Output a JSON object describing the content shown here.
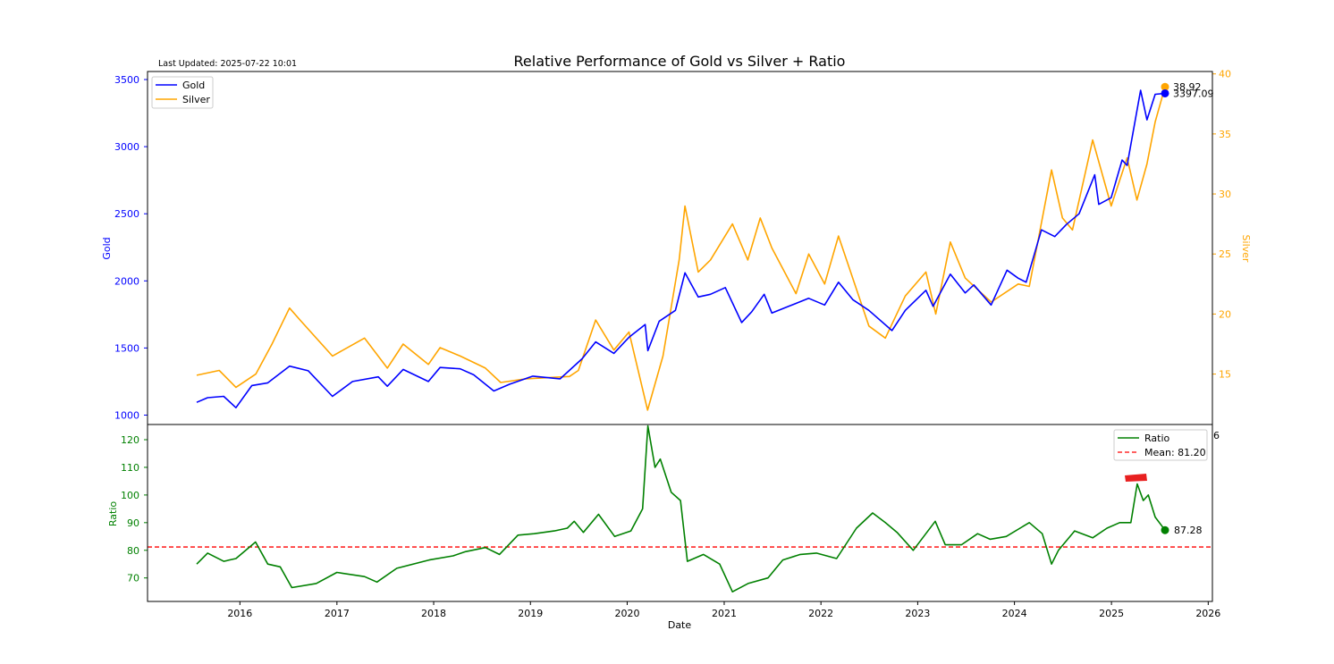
{
  "title": "Relative Performance of Gold vs Silver + Ratio",
  "last_updated": "Last Updated: 2025-07-22 10:01",
  "colors": {
    "gold": "#0000ff",
    "silver": "#ffa500",
    "ratio": "#008000",
    "mean": "#ff0000",
    "marker": "#e82020"
  },
  "chart_data": [
    {
      "type": "line",
      "xlabel": "",
      "ylabel": "Gold",
      "ylabel_right": "Silver",
      "x_range": [
        "2015-07-22",
        "2025-07-22"
      ],
      "ylim": [
        930,
        3560
      ],
      "ylim_right": [
        10.8,
        40.2
      ],
      "yticks": [
        1000,
        1500,
        2000,
        2500,
        3000,
        3500
      ],
      "yticks_right": [
        15,
        20,
        25,
        30,
        35,
        40
      ],
      "legend": "top-left",
      "series": [
        {
          "name": "Gold",
          "axis": "left",
          "x": [
            "2015-07-22",
            "2015-09-01",
            "2015-11-01",
            "2015-12-17",
            "2016-02-15",
            "2016-04-15",
            "2016-07-06",
            "2016-09-15",
            "2016-12-15",
            "2017-03-01",
            "2017-06-06",
            "2017-07-10",
            "2017-09-08",
            "2017-12-12",
            "2018-01-25",
            "2018-04-11",
            "2018-06-01",
            "2018-08-16",
            "2018-10-15",
            "2019-01-10",
            "2019-04-23",
            "2019-06-01",
            "2019-07-15",
            "2019-09-04",
            "2019-11-12",
            "2020-01-08",
            "2020-03-09",
            "2020-03-19",
            "2020-05-01",
            "2020-07-01",
            "2020-08-06",
            "2020-09-25",
            "2020-11-10",
            "2021-01-05",
            "2021-03-08",
            "2021-04-15",
            "2021-06-01",
            "2021-06-30",
            "2021-09-01",
            "2021-11-16",
            "2022-01-15",
            "2022-03-08",
            "2022-05-01",
            "2022-07-01",
            "2022-09-26",
            "2022-11-15",
            "2023-02-01",
            "2023-02-28",
            "2023-05-04",
            "2023-06-29",
            "2023-08-01",
            "2023-10-05",
            "2023-12-04",
            "2024-01-15",
            "2024-02-14",
            "2024-04-12",
            "2024-06-01",
            "2024-07-15",
            "2024-09-01",
            "2024-10-30",
            "2024-11-14",
            "2024-12-31",
            "2025-02-10",
            "2025-03-01",
            "2025-04-21",
            "2025-05-15",
            "2025-06-15",
            "2025-07-22"
          ],
          "values": [
            1095,
            1130,
            1140,
            1055,
            1220,
            1240,
            1365,
            1330,
            1140,
            1250,
            1285,
            1215,
            1340,
            1250,
            1355,
            1345,
            1300,
            1180,
            1230,
            1290,
            1270,
            1340,
            1420,
            1545,
            1460,
            1580,
            1675,
            1480,
            1700,
            1780,
            2060,
            1880,
            1900,
            1950,
            1690,
            1770,
            1900,
            1760,
            1810,
            1870,
            1820,
            1990,
            1860,
            1780,
            1630,
            1780,
            1930,
            1810,
            2050,
            1910,
            1970,
            1820,
            2080,
            2020,
            1990,
            2380,
            2330,
            2420,
            2500,
            2790,
            2570,
            2620,
            2900,
            2860,
            3420,
            3200,
            3390,
            3397.09
          ]
        },
        {
          "name": "Silver",
          "axis": "right",
          "x": [
            "2015-07-22",
            "2015-10-15",
            "2015-12-17",
            "2016-03-01",
            "2016-05-01",
            "2016-07-06",
            "2016-08-15",
            "2016-12-15",
            "2017-04-15",
            "2017-07-10",
            "2017-09-08",
            "2017-12-12",
            "2018-01-25",
            "2018-04-11",
            "2018-07-15",
            "2018-09-11",
            "2018-12-14",
            "2019-05-28",
            "2019-07-01",
            "2019-09-04",
            "2019-11-12",
            "2020-01-08",
            "2020-03-18",
            "2020-05-15",
            "2020-07-15",
            "2020-08-06",
            "2020-09-25",
            "2020-11-10",
            "2021-02-01",
            "2021-03-31",
            "2021-05-17",
            "2021-06-30",
            "2021-09-29",
            "2021-11-16",
            "2022-01-15",
            "2022-03-08",
            "2022-07-01",
            "2022-09-01",
            "2022-11-15",
            "2023-02-01",
            "2023-03-10",
            "2023-05-04",
            "2023-06-29",
            "2023-10-05",
            "2024-01-15",
            "2024-02-26",
            "2024-05-20",
            "2024-06-30",
            "2024-08-07",
            "2024-10-22",
            "2024-12-31",
            "2025-03-01",
            "2025-04-07",
            "2025-05-15",
            "2025-06-15",
            "2025-07-22"
          ],
          "values": [
            14.9,
            15.3,
            13.9,
            15.0,
            17.5,
            20.5,
            19.5,
            16.5,
            18.0,
            15.5,
            17.5,
            15.8,
            17.2,
            16.5,
            15.5,
            14.3,
            14.6,
            14.8,
            15.3,
            19.5,
            17.0,
            18.5,
            12.0,
            16.5,
            24.5,
            29.0,
            23.5,
            24.5,
            27.5,
            24.5,
            28.0,
            25.5,
            21.7,
            25.0,
            22.5,
            26.5,
            19.0,
            18.0,
            21.5,
            23.5,
            20.0,
            26.0,
            23.0,
            21.0,
            22.5,
            22.3,
            32.0,
            28.0,
            27.0,
            34.5,
            29.0,
            33.0,
            29.5,
            32.5,
            36.0,
            38.92
          ]
        }
      ],
      "annotations": [
        {
          "series": "Silver",
          "x": "2025-07-22",
          "y": 38.92,
          "text": "38.92"
        },
        {
          "series": "Gold",
          "x": "2025-07-22",
          "y": 3397.09,
          "text": "3397.09"
        }
      ]
    },
    {
      "type": "line",
      "xlabel": "Date",
      "ylabel": "Ratio",
      "x_range": [
        "2015-07-22",
        "2025-07-22"
      ],
      "ylim": [
        61.5,
        125.5
      ],
      "yticks": [
        70,
        80,
        90,
        100,
        110,
        120
      ],
      "xticks": [
        "2016",
        "2017",
        "2018",
        "2019",
        "2020",
        "2021",
        "2022",
        "2023",
        "2024",
        "2025",
        "2026"
      ],
      "legend": "top-right",
      "mean": 81.2,
      "series": [
        {
          "name": "Ratio",
          "x": [
            "2015-07-22",
            "2015-09-01",
            "2015-11-01",
            "2015-12-17",
            "2016-02-29",
            "2016-04-15",
            "2016-06-01",
            "2016-07-15",
            "2016-10-15",
            "2017-01-01",
            "2017-04-15",
            "2017-06-01",
            "2017-08-15",
            "2017-12-15",
            "2018-03-15",
            "2018-05-01",
            "2018-07-15",
            "2018-09-06",
            "2018-11-15",
            "2019-01-15",
            "2019-04-01",
            "2019-05-20",
            "2019-06-15",
            "2019-07-20",
            "2019-09-15",
            "2019-11-15",
            "2020-01-15",
            "2020-02-28",
            "2020-03-19",
            "2020-04-15",
            "2020-05-05",
            "2020-06-15",
            "2020-07-20",
            "2020-08-15",
            "2020-10-15",
            "2020-12-15",
            "2021-02-01",
            "2021-04-01",
            "2021-06-15",
            "2021-08-10",
            "2021-10-15",
            "2021-12-15",
            "2022-03-01",
            "2022-05-15",
            "2022-07-15",
            "2022-09-01",
            "2022-10-15",
            "2022-12-15",
            "2023-03-08",
            "2023-04-15",
            "2023-06-15",
            "2023-08-15",
            "2023-10-01",
            "2023-12-01",
            "2024-02-26",
            "2024-04-15",
            "2024-05-20",
            "2024-06-15",
            "2024-08-15",
            "2024-10-22",
            "2024-12-15",
            "2025-02-01",
            "2025-03-15",
            "2025-04-08",
            "2025-05-01",
            "2025-05-20",
            "2025-06-15",
            "2025-07-22"
          ],
          "values": [
            75.0,
            79.0,
            76.0,
            77.0,
            83.0,
            75.0,
            74.0,
            66.5,
            68.0,
            72.0,
            70.5,
            68.5,
            73.5,
            76.5,
            78.0,
            79.5,
            81.0,
            78.5,
            85.5,
            86.0,
            87.0,
            88.0,
            90.5,
            86.5,
            93.0,
            85.0,
            87.0,
            95.0,
            125.0,
            110.0,
            113.0,
            101.0,
            98.0,
            76.0,
            78.5,
            75.0,
            65.0,
            68.0,
            70.0,
            76.5,
            78.5,
            79.0,
            77.0,
            88.0,
            93.5,
            90.0,
            86.5,
            80.0,
            90.5,
            82.0,
            82.0,
            86.0,
            84.0,
            85.0,
            90.0,
            86.0,
            75.0,
            80.0,
            87.0,
            84.5,
            88.0,
            90.0,
            90.0,
            104.0,
            98.0,
            100.0,
            92.0,
            87.28
          ]
        }
      ],
      "marker_label": "87.28",
      "legend_entries": [
        "Ratio",
        "Mean: 81.20"
      ],
      "legend_mean": "Mean: 81.20",
      "stray_text": "6"
    }
  ]
}
